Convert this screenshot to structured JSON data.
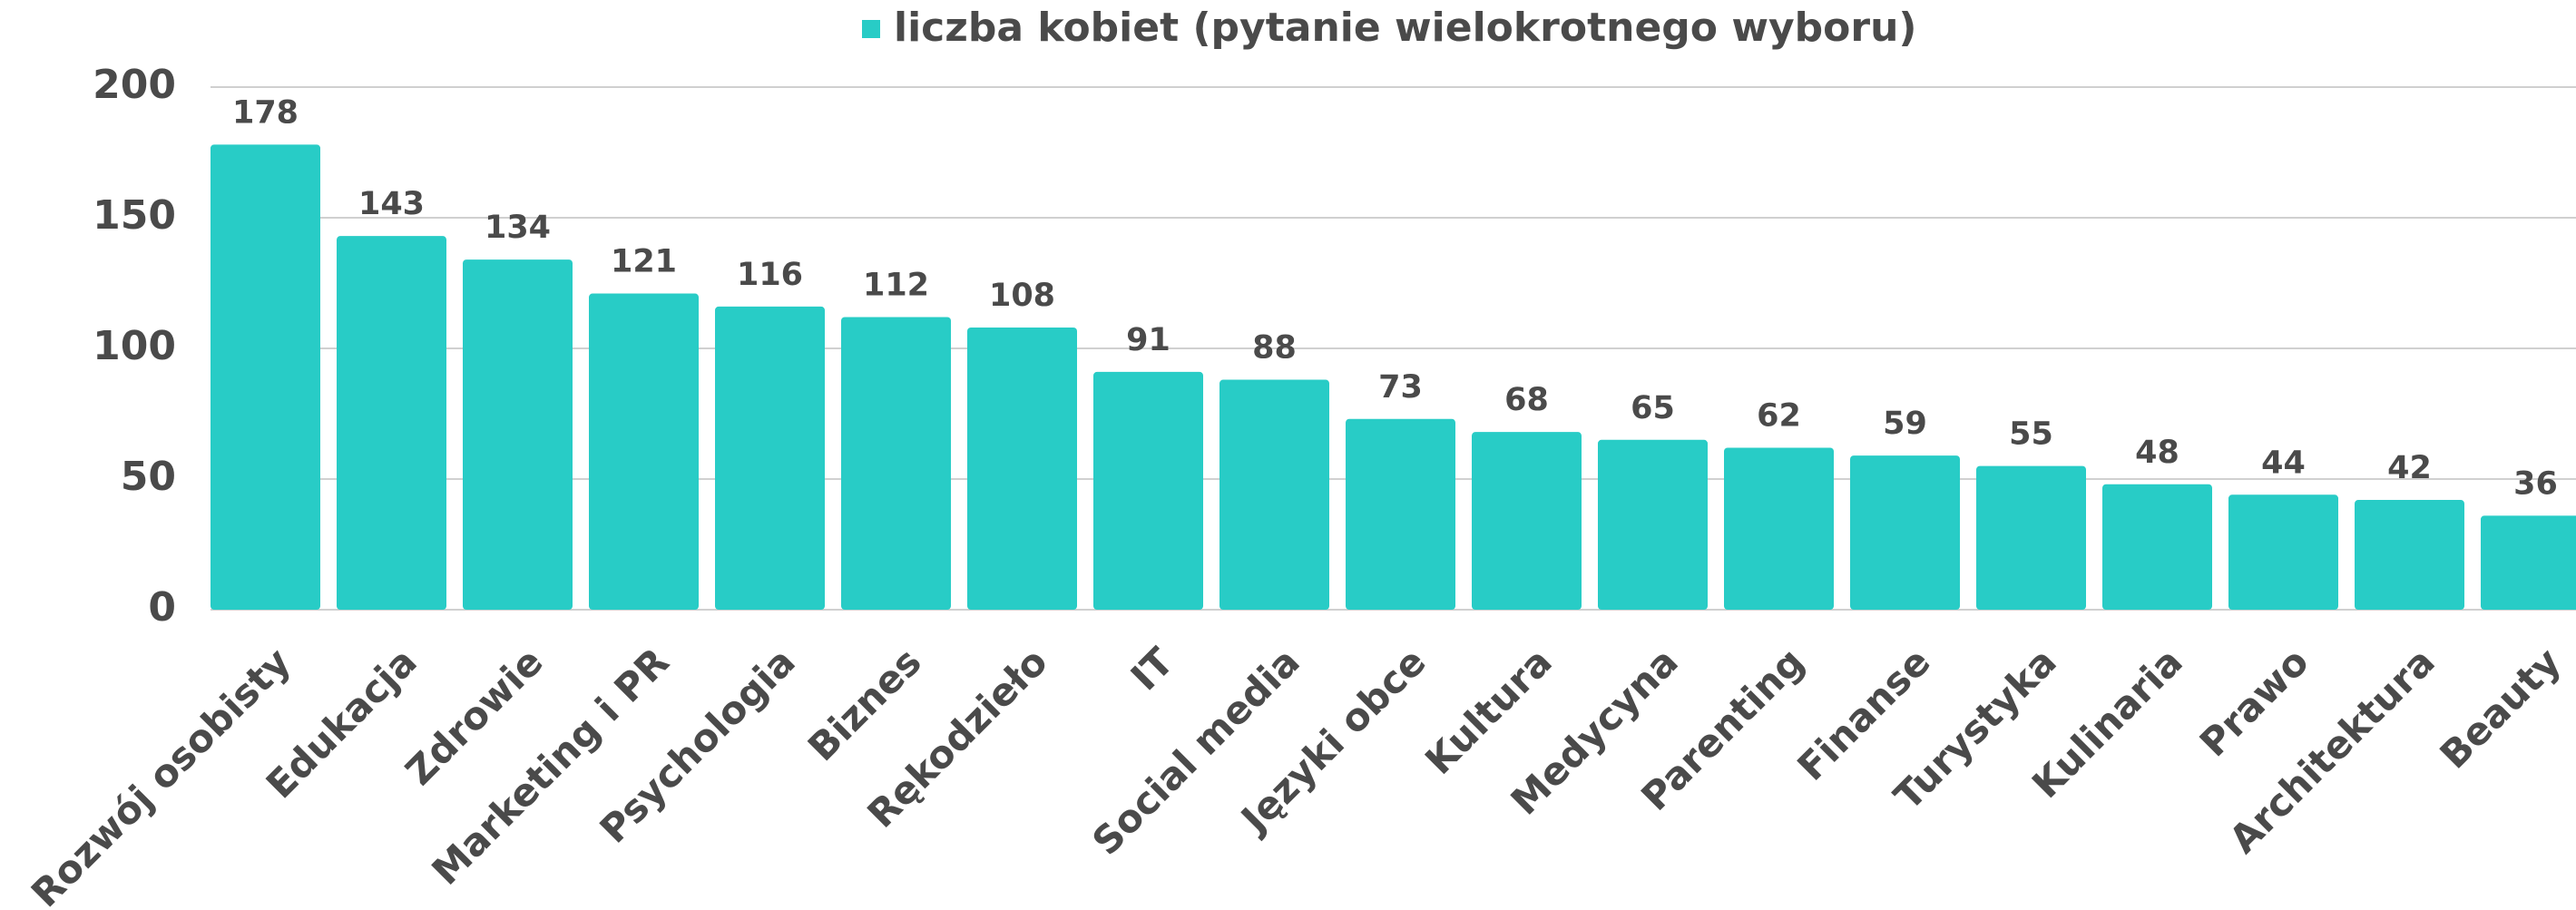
{
  "chart_data": {
    "type": "bar",
    "categories": [
      "Rozwój osobisty",
      "Edukacja",
      "Zdrowie",
      "Marketing i PR",
      "Psychologia",
      "Biznes",
      "Rękodzieło",
      "IT",
      "Social media",
      "Języki obce",
      "Kultura",
      "Medycyna",
      "Parenting",
      "Finanse",
      "Turystyka",
      "Kulinaria",
      "Prawo",
      "Architektura",
      "Beauty"
    ],
    "series": [
      {
        "name": "liczba kobiet (pytanie wielokrotnego wyboru)",
        "color": "#28ccc6",
        "values": [
          178,
          143,
          134,
          121,
          116,
          112,
          108,
          91,
          88,
          73,
          68,
          65,
          62,
          59,
          55,
          48,
          44,
          42,
          36
        ]
      }
    ],
    "ylim": [
      0,
      200
    ],
    "yticks": [
      0,
      50,
      100,
      150,
      200
    ],
    "grid": true,
    "legend": "top"
  }
}
